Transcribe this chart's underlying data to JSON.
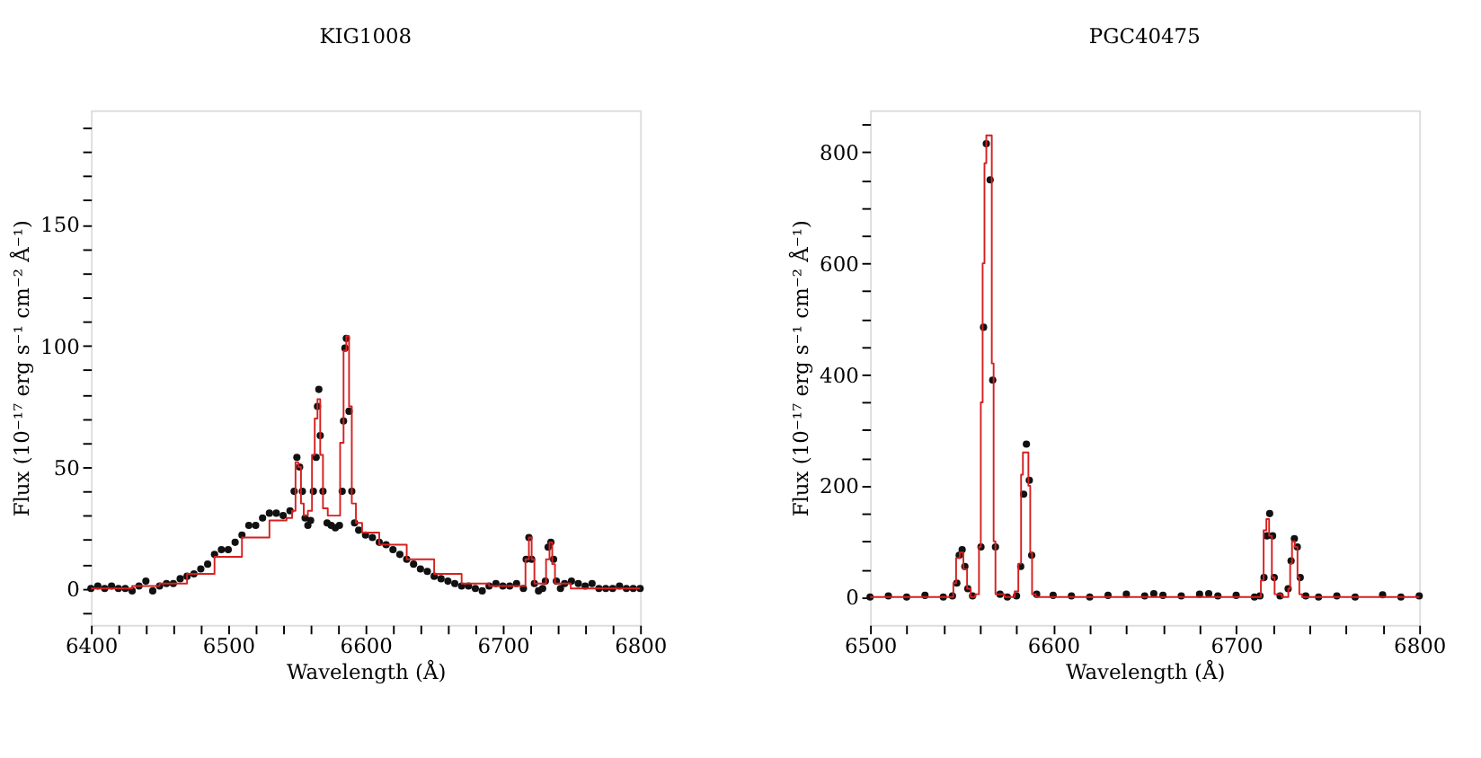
{
  "chart_data": [
    {
      "type": "scatter",
      "title": "KIG1008",
      "xlabel": "Wavelength (Å)",
      "ylabel": "Flux (10⁻¹⁷ erg s⁻¹ cm⁻² Å⁻¹)",
      "xlim": [
        6400,
        6800
      ],
      "ylim": [
        -15,
        197
      ],
      "grid": false,
      "marker": "circle",
      "xticks": [
        6400,
        {
          "value": 6420,
          "label": null
        },
        {
          "value": 6440,
          "label": null
        },
        {
          "value": 6460,
          "label": null
        },
        {
          "value": 6480,
          "label": null
        },
        6500,
        {
          "value": 6520,
          "label": null
        },
        {
          "value": 6540,
          "label": null
        },
        {
          "value": 6560,
          "label": null
        },
        {
          "value": 6580,
          "label": null
        },
        6600,
        {
          "value": 6620,
          "label": null
        },
        {
          "value": 6640,
          "label": null
        },
        {
          "value": 6660,
          "label": null
        },
        {
          "value": 6680,
          "label": null
        },
        6700,
        {
          "value": 6720,
          "label": null
        },
        {
          "value": 6740,
          "label": null
        },
        {
          "value": 6760,
          "label": null
        },
        {
          "value": 6780,
          "label": null
        },
        6800
      ],
      "yticks": [
        {
          "value": -10,
          "label": null
        },
        0,
        {
          "value": 10,
          "label": null
        },
        {
          "value": 20,
          "label": null
        },
        {
          "value": 30,
          "label": null
        },
        {
          "value": 40,
          "label": null
        },
        50,
        {
          "value": 60,
          "label": null
        },
        {
          "value": 70,
          "label": null
        },
        {
          "value": 80,
          "label": null
        },
        {
          "value": 90,
          "label": null
        },
        100,
        {
          "value": 110,
          "label": null
        },
        {
          "value": 120,
          "label": null
        },
        {
          "value": 130,
          "label": null
        },
        {
          "value": 140,
          "label": null
        },
        150,
        {
          "value": 160,
          "label": null
        },
        {
          "value": 170,
          "label": null
        },
        {
          "value": 180,
          "label": null
        },
        {
          "value": 190,
          "label": null
        }
      ],
      "series": [
        {
          "color": "#111111",
          "x": [
            6400,
            6405,
            6410,
            6415,
            6420,
            6425,
            6430,
            6435,
            6440,
            6445,
            6450,
            6455,
            6460,
            6465,
            6470,
            6475,
            6480,
            6485,
            6490,
            6495,
            6500,
            6505,
            6510,
            6515,
            6520,
            6525,
            6530,
            6535,
            6540,
            6545,
            6548,
            6550,
            6552,
            6554,
            6556,
            6558,
            6560,
            6562,
            6564,
            6565,
            6566,
            6567,
            6569,
            6572,
            6575,
            6578,
            6581,
            6583,
            6584,
            6585,
            6586,
            6588,
            6590,
            6592,
            6595,
            6600,
            6605,
            6610,
            6615,
            6620,
            6625,
            6630,
            6635,
            6640,
            6645,
            6650,
            6655,
            6660,
            6665,
            6670,
            6675,
            6680,
            6685,
            6690,
            6695,
            6700,
            6705,
            6710,
            6715,
            6717,
            6719,
            6721,
            6723,
            6726,
            6729,
            6731,
            6733,
            6735,
            6737,
            6739,
            6742,
            6745,
            6750,
            6755,
            6760,
            6765,
            6770,
            6775,
            6780,
            6785,
            6790,
            6795,
            6800
          ],
          "values": [
            0,
            1,
            0,
            1,
            0,
            0,
            -1,
            1,
            3,
            -1,
            1,
            2,
            2,
            4,
            5,
            6,
            8,
            10,
            14,
            16,
            16,
            19,
            22,
            26,
            26,
            29,
            31,
            31,
            30,
            32,
            40,
            54,
            50,
            40,
            29,
            26,
            28,
            40,
            54,
            75,
            82,
            63,
            40,
            27,
            26,
            25,
            26,
            40,
            69,
            99,
            103,
            73,
            40,
            27,
            24,
            22,
            21,
            19,
            18,
            16,
            14,
            12,
            10,
            8,
            7,
            5,
            4,
            3,
            2,
            1,
            1,
            0,
            -1,
            1,
            2,
            1,
            1,
            2,
            0,
            12,
            21,
            12,
            2,
            -1,
            0,
            3,
            17,
            19,
            12,
            3,
            0,
            2,
            3,
            2,
            1,
            2,
            0,
            0,
            0,
            1,
            0,
            0,
            0
          ]
        },
        {
          "type": "step",
          "marker": "none",
          "color": "#d62020",
          "x": [
            6400,
            6420,
            6440,
            6460,
            6480,
            6500,
            6520,
            6540,
            6545,
            6548,
            6550,
            6552,
            6554,
            6556,
            6560,
            6562,
            6564,
            6566,
            6568,
            6570,
            6575,
            6580,
            6583,
            6585,
            6587,
            6589,
            6591,
            6595,
            6600,
            6620,
            6640,
            6660,
            6680,
            6700,
            6715,
            6718,
            6720,
            6722,
            6724,
            6730,
            6733,
            6735,
            6737,
            6739,
            6760,
            6800
          ],
          "values": [
            0,
            0,
            1,
            2,
            6,
            13,
            21,
            28,
            29,
            32,
            52,
            50,
            35,
            30,
            32,
            55,
            70,
            78,
            55,
            33,
            30,
            30,
            60,
            98,
            104,
            75,
            35,
            27,
            23,
            18,
            12,
            6,
            2,
            1,
            1,
            12,
            21,
            12,
            2,
            2,
            12,
            19,
            10,
            2,
            0,
            0
          ]
        }
      ]
    },
    {
      "type": "scatter",
      "title": "PGC40475",
      "xlabel": "Wavelength (Å)",
      "ylabel": "Flux (10⁻¹⁷ erg s⁻¹ cm⁻² Å⁻¹)",
      "xlim": [
        6500,
        6800
      ],
      "ylim": [
        -50,
        875
      ],
      "grid": false,
      "marker": "circle",
      "xticks": [
        6500,
        {
          "value": 6520,
          "label": null
        },
        {
          "value": 6540,
          "label": null
        },
        {
          "value": 6560,
          "label": null
        },
        {
          "value": 6580,
          "label": null
        },
        6600,
        {
          "value": 6620,
          "label": null
        },
        {
          "value": 6640,
          "label": null
        },
        {
          "value": 6660,
          "label": null
        },
        {
          "value": 6680,
          "label": null
        },
        6700,
        {
          "value": 6720,
          "label": null
        },
        {
          "value": 6740,
          "label": null
        },
        {
          "value": 6760,
          "label": null
        },
        {
          "value": 6780,
          "label": null
        },
        6800
      ],
      "yticks": [
        0,
        {
          "value": 50,
          "label": null
        },
        {
          "value": 100,
          "label": null
        },
        {
          "value": 150,
          "label": null
        },
        200,
        {
          "value": 250,
          "label": null
        },
        {
          "value": 300,
          "label": null
        },
        {
          "value": 350,
          "label": null
        },
        400,
        {
          "value": 450,
          "label": null
        },
        {
          "value": 500,
          "label": null
        },
        {
          "value": 550,
          "label": null
        },
        600,
        {
          "value": 650,
          "label": null
        },
        {
          "value": 700,
          "label": null
        },
        {
          "value": 750,
          "label": null
        },
        800,
        {
          "value": 850,
          "label": null
        }
      ],
      "series": [
        {
          "color": "#111111",
          "x": [
            6500,
            6510,
            6520,
            6530,
            6540,
            6545,
            6547.4,
            6548.7,
            6550.3,
            6551.8,
            6553.4,
            6556,
            6560.6,
            6562,
            6563.5,
            6565.6,
            6567,
            6568.5,
            6571,
            6575,
            6580,
            6582.3,
            6583.9,
            6585.4,
            6587,
            6588.3,
            6591,
            6600,
            6610,
            6620,
            6630,
            6640,
            6650,
            6655,
            6660,
            6670,
            6680,
            6685,
            6690,
            6700,
            6710,
            6713,
            6715.2,
            6716.8,
            6718.3,
            6719.9,
            6720.8,
            6724,
            6728.4,
            6730,
            6731.8,
            6733.4,
            6735,
            6738,
            6745,
            6755,
            6765,
            6780,
            6790,
            6800
          ],
          "values": [
            0,
            2,
            0,
            3,
            0,
            2,
            25,
            75,
            85,
            55,
            15,
            2,
            90,
            485,
            815,
            750,
            390,
            90,
            5,
            0,
            2,
            55,
            185,
            275,
            210,
            75,
            5,
            3,
            2,
            0,
            3,
            5,
            2,
            6,
            3,
            2,
            5,
            6,
            2,
            3,
            0,
            2,
            35,
            110,
            150,
            110,
            35,
            2,
            15,
            65,
            105,
            90,
            35,
            2,
            0,
            2,
            0,
            4,
            0,
            2
          ]
        },
        {
          "type": "step",
          "marker": "none",
          "color": "#d62020",
          "x": [
            6500,
            6545,
            6546,
            6548,
            6550,
            6552,
            6554,
            6556,
            6559,
            6560,
            6561,
            6562,
            6563,
            6564,
            6566,
            6567,
            6568,
            6569,
            6578,
            6580,
            6582,
            6583,
            6584,
            6586,
            6587,
            6588,
            6589,
            6592,
            6713,
            6714,
            6716,
            6717,
            6719,
            6720,
            6722,
            6728,
            6729,
            6730,
            6731,
            6733,
            6734,
            6735,
            6737,
            6800
          ],
          "values": [
            0,
            0,
            25,
            70,
            80,
            50,
            15,
            0,
            5,
            90,
            350,
            600,
            780,
            830,
            830,
            420,
            100,
            5,
            0,
            10,
            60,
            220,
            260,
            260,
            200,
            80,
            5,
            0,
            0,
            30,
            120,
            140,
            110,
            35,
            5,
            0,
            15,
            60,
            100,
            90,
            35,
            5,
            0,
            0
          ]
        }
      ]
    }
  ]
}
